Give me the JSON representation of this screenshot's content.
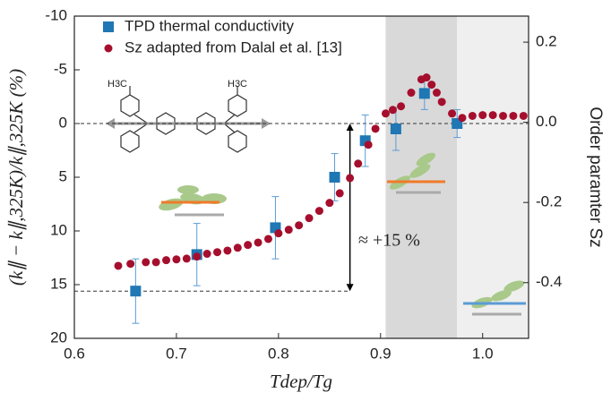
{
  "chart_data": {
    "type": "scatter",
    "x_label": "Tdep/Tg",
    "y_label": "(k∥ − k∥,325K)/k∥,325K (%)",
    "y2_label": "Order paramter Sz",
    "xlim": [
      0.6,
      1.045
    ],
    "xticks": [
      0.6,
      0.7,
      0.8,
      0.9,
      {
        "value": 1.0,
        "label": "1.0"
      }
    ],
    "ylim": [
      -10,
      20
    ],
    "y_inverted": true,
    "yticks": [
      -10,
      -5,
      0,
      5,
      10,
      15,
      20
    ],
    "y2lim": [
      -0.539,
      0.265
    ],
    "y2ticks": [
      0.2,
      {
        "value": 0,
        "label": "0.0"
      },
      -0.2,
      -0.4
    ],
    "legend": "upper left",
    "shaded_regions": [
      {
        "x": [
          0.905,
          0.975
        ],
        "color": "#d9d9d9"
      },
      {
        "x": [
          0.975,
          1.045
        ],
        "color": "#efefef"
      }
    ],
    "hlines": [
      0,
      15.6
    ],
    "arrow": {
      "x": 0.87,
      "y": [
        0,
        15.6
      ]
    },
    "annotations": [
      "≈ +15 %",
      "H3C",
      "H3C"
    ],
    "series": [
      {
        "name": "TPD thermal conductivity",
        "color": "#1f77b4",
        "marker": "square",
        "axis": "y",
        "x": [
          0.66,
          0.72,
          0.797,
          0.855,
          0.885,
          0.915,
          0.943,
          0.975
        ],
        "values": [
          15.6,
          12.2,
          9.7,
          5.0,
          1.6,
          0.5,
          -2.8,
          0.0
        ],
        "errors": [
          3.0,
          2.9,
          2.9,
          2.2,
          2.4,
          2.0,
          1.5,
          1.3
        ]
      },
      {
        "name": "Sz adapted from Dalal et al. [13]",
        "color": "#a50f2d",
        "marker": "circle",
        "axis": "y2",
        "x": [
          0.643,
          0.655,
          0.67,
          0.68,
          0.69,
          0.7,
          0.71,
          0.72,
          0.73,
          0.74,
          0.75,
          0.76,
          0.77,
          0.78,
          0.79,
          0.8,
          0.81,
          0.82,
          0.83,
          0.84,
          0.85,
          0.86,
          0.87,
          0.878,
          0.888,
          0.895,
          0.905,
          0.912,
          0.92,
          0.93,
          0.94,
          0.945,
          0.95,
          0.955,
          0.96,
          0.97,
          0.98,
          0.99,
          1.0,
          1.01,
          1.02,
          1.03,
          1.04
        ],
        "values": [
          -0.358,
          -0.353,
          -0.349,
          -0.349,
          -0.344,
          -0.342,
          -0.34,
          -0.335,
          -0.328,
          -0.324,
          -0.32,
          -0.313,
          -0.306,
          -0.3,
          -0.291,
          -0.277,
          -0.268,
          -0.257,
          -0.239,
          -0.221,
          -0.201,
          -0.177,
          -0.139,
          -0.103,
          -0.056,
          -0.016,
          0.022,
          0.031,
          0.04,
          0.074,
          0.107,
          0.112,
          0.094,
          0.074,
          0.051,
          0.022,
          0.011,
          0.016,
          0.018,
          0.018,
          0.016,
          0.016,
          0.016
        ]
      }
    ]
  }
}
